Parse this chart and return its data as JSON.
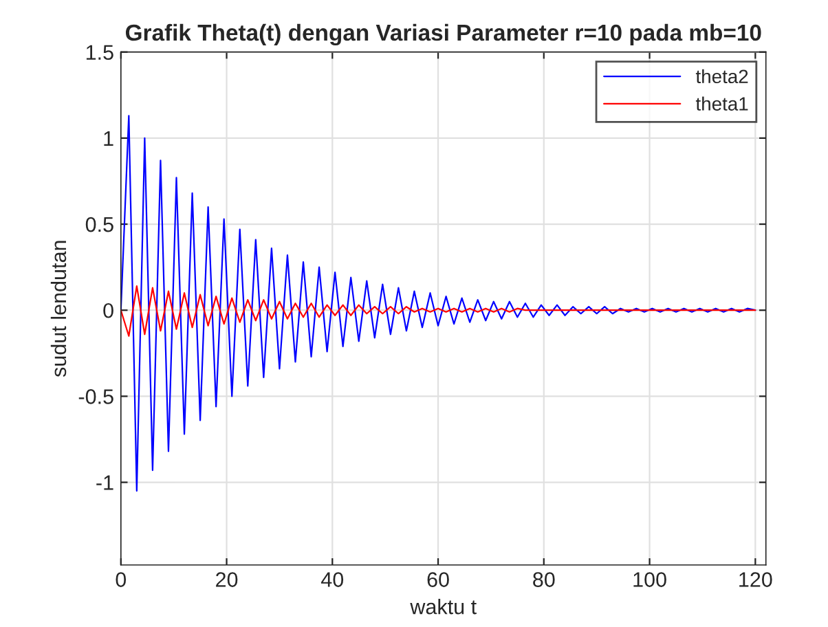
{
  "chart_data": {
    "type": "line",
    "title": "Grafik Theta(t) dengan Variasi Parameter r=10 pada mb=10",
    "xlabel": "waktu t",
    "ylabel": "sudut lendutan",
    "x": [
      0,
      1.5,
      3,
      4.5,
      6,
      7.5,
      9,
      10.5,
      12,
      13.5,
      15,
      16.5,
      18,
      19.5,
      21,
      22.5,
      24,
      25.5,
      27,
      28.5,
      30,
      31.5,
      33,
      34.5,
      36,
      37.5,
      39,
      40.5,
      42,
      43.5,
      45,
      46.5,
      48,
      49.5,
      51,
      52.5,
      54,
      55.5,
      57,
      58.5,
      60,
      61.5,
      63,
      64.5,
      66,
      67.5,
      69,
      70.5,
      72,
      73.5,
      75,
      76.5,
      78,
      79.5,
      81,
      82.5,
      84,
      85.5,
      87,
      88.5,
      90,
      91.5,
      93,
      94.5,
      96,
      97.5,
      99,
      100.5,
      102,
      103.5,
      105,
      106.5,
      108,
      109.5,
      111,
      112.5,
      114,
      115.5,
      117,
      118.5,
      120
    ],
    "series": [
      {
        "name": "theta2",
        "color": "#0000ff",
        "values": [
          0,
          1.13,
          -1.05,
          1.0,
          -0.93,
          0.87,
          -0.82,
          0.77,
          -0.72,
          0.68,
          -0.64,
          0.6,
          -0.56,
          0.53,
          -0.5,
          0.47,
          -0.44,
          0.41,
          -0.39,
          0.36,
          -0.34,
          0.32,
          -0.3,
          0.28,
          -0.27,
          0.25,
          -0.24,
          0.22,
          -0.21,
          0.19,
          -0.18,
          0.17,
          -0.16,
          0.15,
          -0.14,
          0.13,
          -0.12,
          0.11,
          -0.1,
          0.1,
          -0.09,
          0.08,
          -0.08,
          0.07,
          -0.07,
          0.06,
          -0.06,
          0.05,
          -0.05,
          0.05,
          -0.04,
          0.04,
          -0.04,
          0.03,
          -0.03,
          0.03,
          -0.03,
          0.02,
          -0.02,
          0.02,
          -0.02,
          0.02,
          -0.02,
          0.01,
          -0.01,
          0.01,
          -0.01,
          0.01,
          -0.01,
          0.01,
          -0.01,
          0.01,
          -0.01,
          0.01,
          -0.01,
          0.01,
          -0.01,
          0.01,
          -0.01,
          0.01,
          0
        ]
      },
      {
        "name": "theta1",
        "color": "#ff0000",
        "values": [
          0,
          -0.15,
          0.14,
          -0.14,
          0.13,
          -0.12,
          0.11,
          -0.11,
          0.1,
          -0.1,
          0.09,
          -0.09,
          0.08,
          -0.08,
          0.07,
          -0.07,
          0.06,
          -0.06,
          0.06,
          -0.05,
          0.05,
          -0.05,
          0.04,
          -0.04,
          0.04,
          -0.04,
          0.03,
          -0.03,
          0.03,
          -0.03,
          0.03,
          -0.02,
          0.02,
          -0.02,
          0.02,
          -0.02,
          0.02,
          -0.01,
          0.01,
          -0.01,
          0.01,
          -0.01,
          0.01,
          -0.01,
          0.01,
          -0.01,
          0.01,
          -0.01,
          0.01,
          -0.01,
          0.01,
          0,
          0,
          0,
          0,
          0,
          0,
          0,
          0,
          0,
          0,
          0,
          0,
          0,
          0,
          0,
          0,
          0,
          0,
          0,
          0,
          0,
          0,
          0,
          0,
          0,
          0,
          0,
          0,
          0,
          0
        ]
      }
    ],
    "xlim": [
      0,
      122
    ],
    "xticks": [
      0,
      20,
      40,
      60,
      80,
      100,
      120
    ],
    "ylim": [
      -1.48,
      1.5
    ],
    "yticks": [
      -1,
      -0.5,
      0,
      0.5,
      1,
      1.5
    ],
    "grid": true,
    "legend": "top right"
  }
}
